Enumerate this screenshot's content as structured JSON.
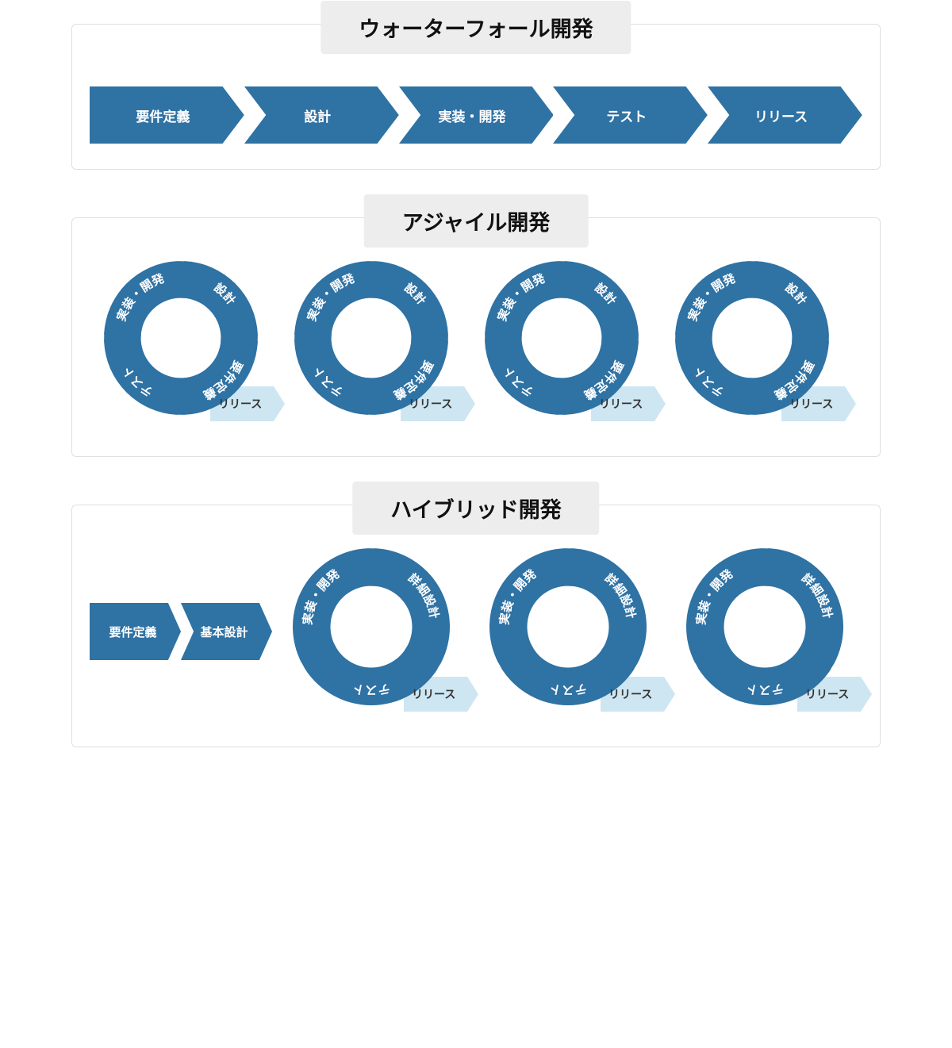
{
  "colors": {
    "primary": "#2f72a4",
    "light": "#cde6f2",
    "title_bg": "#ededed",
    "border": "#e0e0e0",
    "text_white": "#ffffff",
    "text_dark": "#222222"
  },
  "sections": {
    "waterfall": {
      "title": "ウォーターフォール開発",
      "steps": [
        "要件定義",
        "設計",
        "実装・開発",
        "テスト",
        "リリース"
      ]
    },
    "agile": {
      "title": "アジャイル開発",
      "cycle_count": 4,
      "cycle_segments": [
        "設計",
        "要件定義",
        "テスト",
        "実装・開発"
      ],
      "release_label": "リリース"
    },
    "hybrid": {
      "title": "ハイブリッド開発",
      "lead_steps": [
        "要件定義",
        "基本設計"
      ],
      "cycle_count": 3,
      "cycle_segments": [
        "詳細設計",
        "テスト",
        "実装・開発"
      ],
      "release_label": "リリース"
    }
  },
  "typography": {
    "title_fontsize": 27,
    "step_fontsize": 17,
    "cycle_label_fontsize": 15,
    "release_fontsize": 14
  }
}
